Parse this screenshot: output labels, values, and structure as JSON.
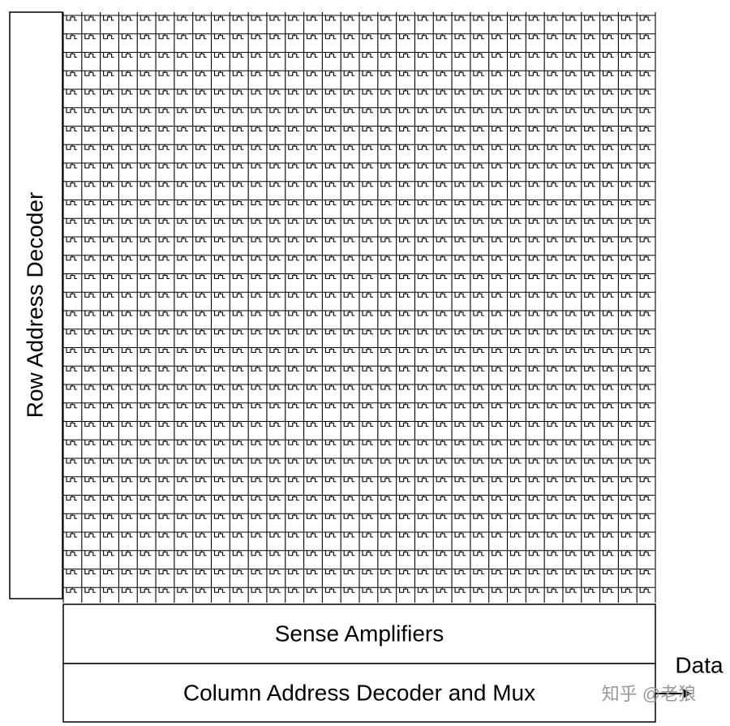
{
  "blocks": {
    "row_decoder": "Row Address Decoder",
    "sense_amplifiers": "Sense Amplifiers",
    "column_decoder": "Column Address Decoder and Mux"
  },
  "output_label": "Data",
  "watermark": "知乎 @老狼"
}
